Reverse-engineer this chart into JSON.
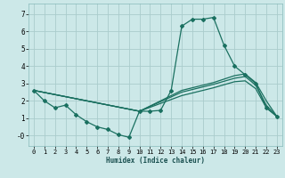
{
  "xlabel": "Humidex (Indice chaleur)",
  "bg_color": "#cce8e8",
  "grid_color": "#aacccc",
  "line_color": "#1a7060",
  "xlim": [
    -0.5,
    23.5
  ],
  "ylim": [
    -0.6,
    7.6
  ],
  "xticks": [
    0,
    1,
    2,
    3,
    4,
    5,
    6,
    7,
    8,
    9,
    10,
    11,
    12,
    13,
    14,
    15,
    16,
    17,
    18,
    19,
    20,
    21,
    22,
    23
  ],
  "yticks": [
    0,
    1,
    2,
    3,
    4,
    5,
    6,
    7
  ],
  "ytick_labels": [
    "-0",
    "1",
    "2",
    "3",
    "4",
    "5",
    "6",
    "7"
  ],
  "line1_x": [
    0,
    1,
    2,
    3,
    4,
    5,
    6,
    7,
    8,
    9,
    10,
    11,
    12,
    13,
    14,
    15,
    16,
    17,
    18,
    19,
    20,
    21,
    22,
    23
  ],
  "line1_y": [
    2.6,
    2.0,
    1.6,
    1.75,
    1.2,
    0.8,
    0.5,
    0.35,
    0.05,
    -0.1,
    1.4,
    1.4,
    1.45,
    2.6,
    6.3,
    6.7,
    6.7,
    6.8,
    5.2,
    4.0,
    3.5,
    3.0,
    1.6,
    1.1
  ],
  "line2_x": [
    0,
    10,
    14,
    17,
    19,
    20,
    21,
    22,
    23
  ],
  "line2_y": [
    2.6,
    1.4,
    2.6,
    3.05,
    3.45,
    3.55,
    3.05,
    2.0,
    1.1
  ],
  "line3_x": [
    0,
    10,
    14,
    17,
    19,
    20,
    21,
    22,
    23
  ],
  "line3_y": [
    2.6,
    1.4,
    2.5,
    2.95,
    3.3,
    3.4,
    2.9,
    1.75,
    1.1
  ],
  "line4_x": [
    0,
    10,
    14,
    17,
    19,
    20,
    21,
    22,
    23
  ],
  "line4_y": [
    2.6,
    1.4,
    2.3,
    2.75,
    3.1,
    3.15,
    2.7,
    1.6,
    1.1
  ]
}
